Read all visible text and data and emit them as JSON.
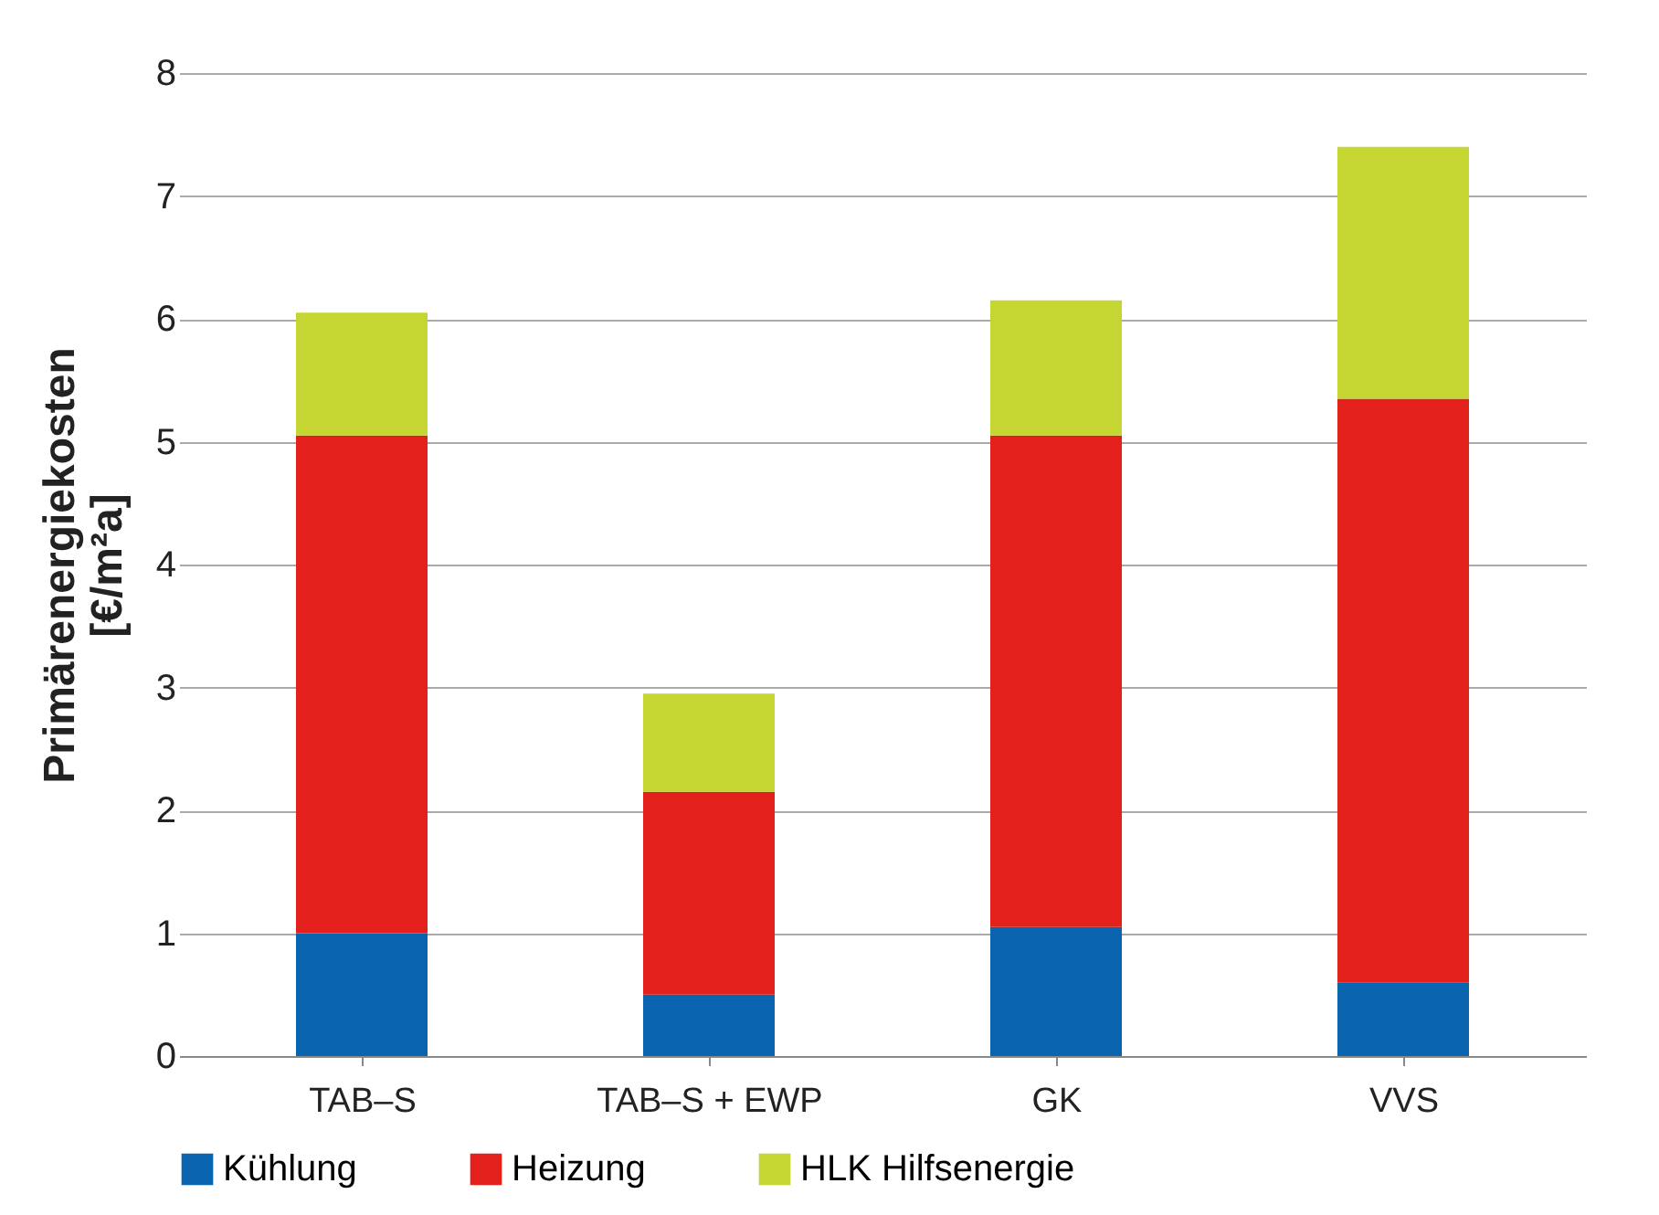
{
  "chart_data": {
    "type": "bar",
    "stacked": true,
    "ylabel": "Primärenergiekosten\n[€/m²a]",
    "categories": [
      "TAB–S",
      "TAB–S + EWP",
      "GK",
      "VVS"
    ],
    "series": [
      {
        "name": "Kühlung",
        "color": "#0a64b0",
        "values": [
          1.0,
          0.5,
          1.05,
          0.6
        ]
      },
      {
        "name": "Heizung",
        "color": "#e3201b",
        "values": [
          4.05,
          1.65,
          4.0,
          4.75
        ]
      },
      {
        "name": "HLK Hilfsenergie",
        "color": "#c5d633",
        "values": [
          1.0,
          0.8,
          1.1,
          2.05
        ]
      }
    ],
    "ylim": [
      0,
      8
    ],
    "yticks": [
      0,
      1,
      2,
      3,
      4,
      5,
      6,
      7,
      8
    ],
    "grid": "y",
    "legend": "bottom"
  }
}
